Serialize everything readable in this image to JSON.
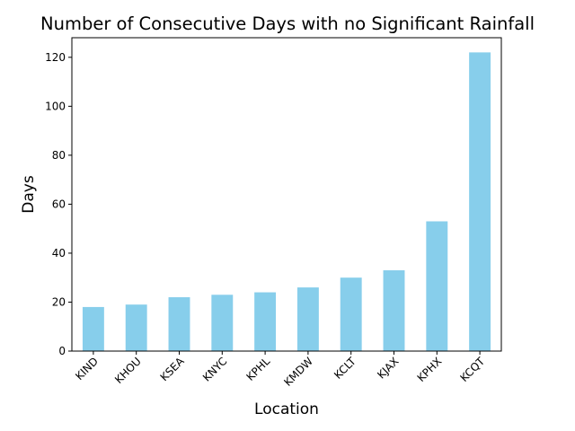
{
  "chart_data": {
    "type": "bar",
    "title": "Number of Consecutive Days with no Significant Rainfall",
    "xlabel": "Location",
    "ylabel": "Days",
    "categories": [
      "KIND",
      "KHOU",
      "KSEA",
      "KNYC",
      "KPHL",
      "KMDW",
      "KCLT",
      "KJAX",
      "KPHX",
      "KCQT"
    ],
    "values": [
      18,
      19,
      22,
      23,
      24,
      26,
      30,
      33,
      53,
      122
    ],
    "ylim": [
      0,
      128
    ],
    "yticks": [
      0,
      20,
      40,
      60,
      80,
      100,
      120
    ],
    "grid": false,
    "legend": "none",
    "bar_color": "#87ceeb"
  }
}
